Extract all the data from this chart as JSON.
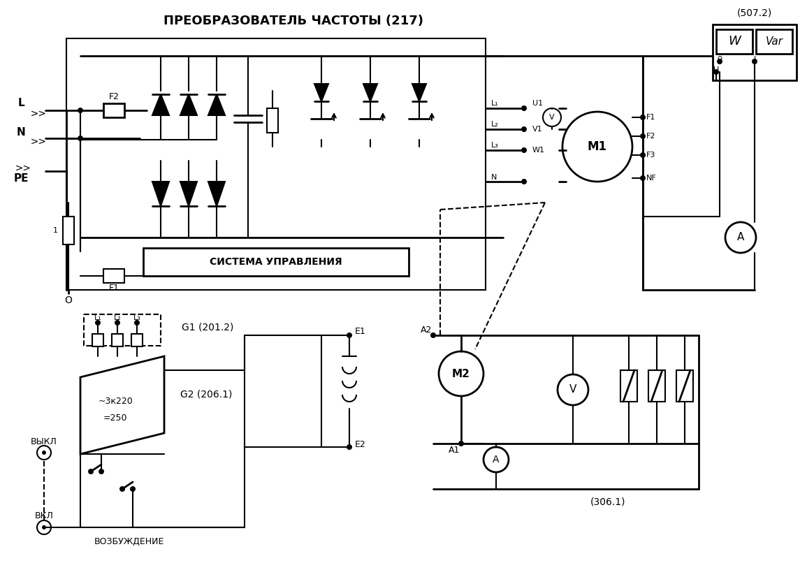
{
  "title": "ПРЕОБРАЗОВАТЕЛЬ ЧАСТОТЫ (217)",
  "bg_color": "#ffffff",
  "line_color": "#000000",
  "title_507": "(507.2)",
  "label_G1": "G1 (201.2)",
  "label_G2": "G2 (206.1)",
  "label_306": "(306.1)",
  "label_sistema": "СИСТЕМА УПРАВЛЕНИЯ",
  "label_vozbuzhdenie": "ВОЗБУЖДЕНИЕ"
}
